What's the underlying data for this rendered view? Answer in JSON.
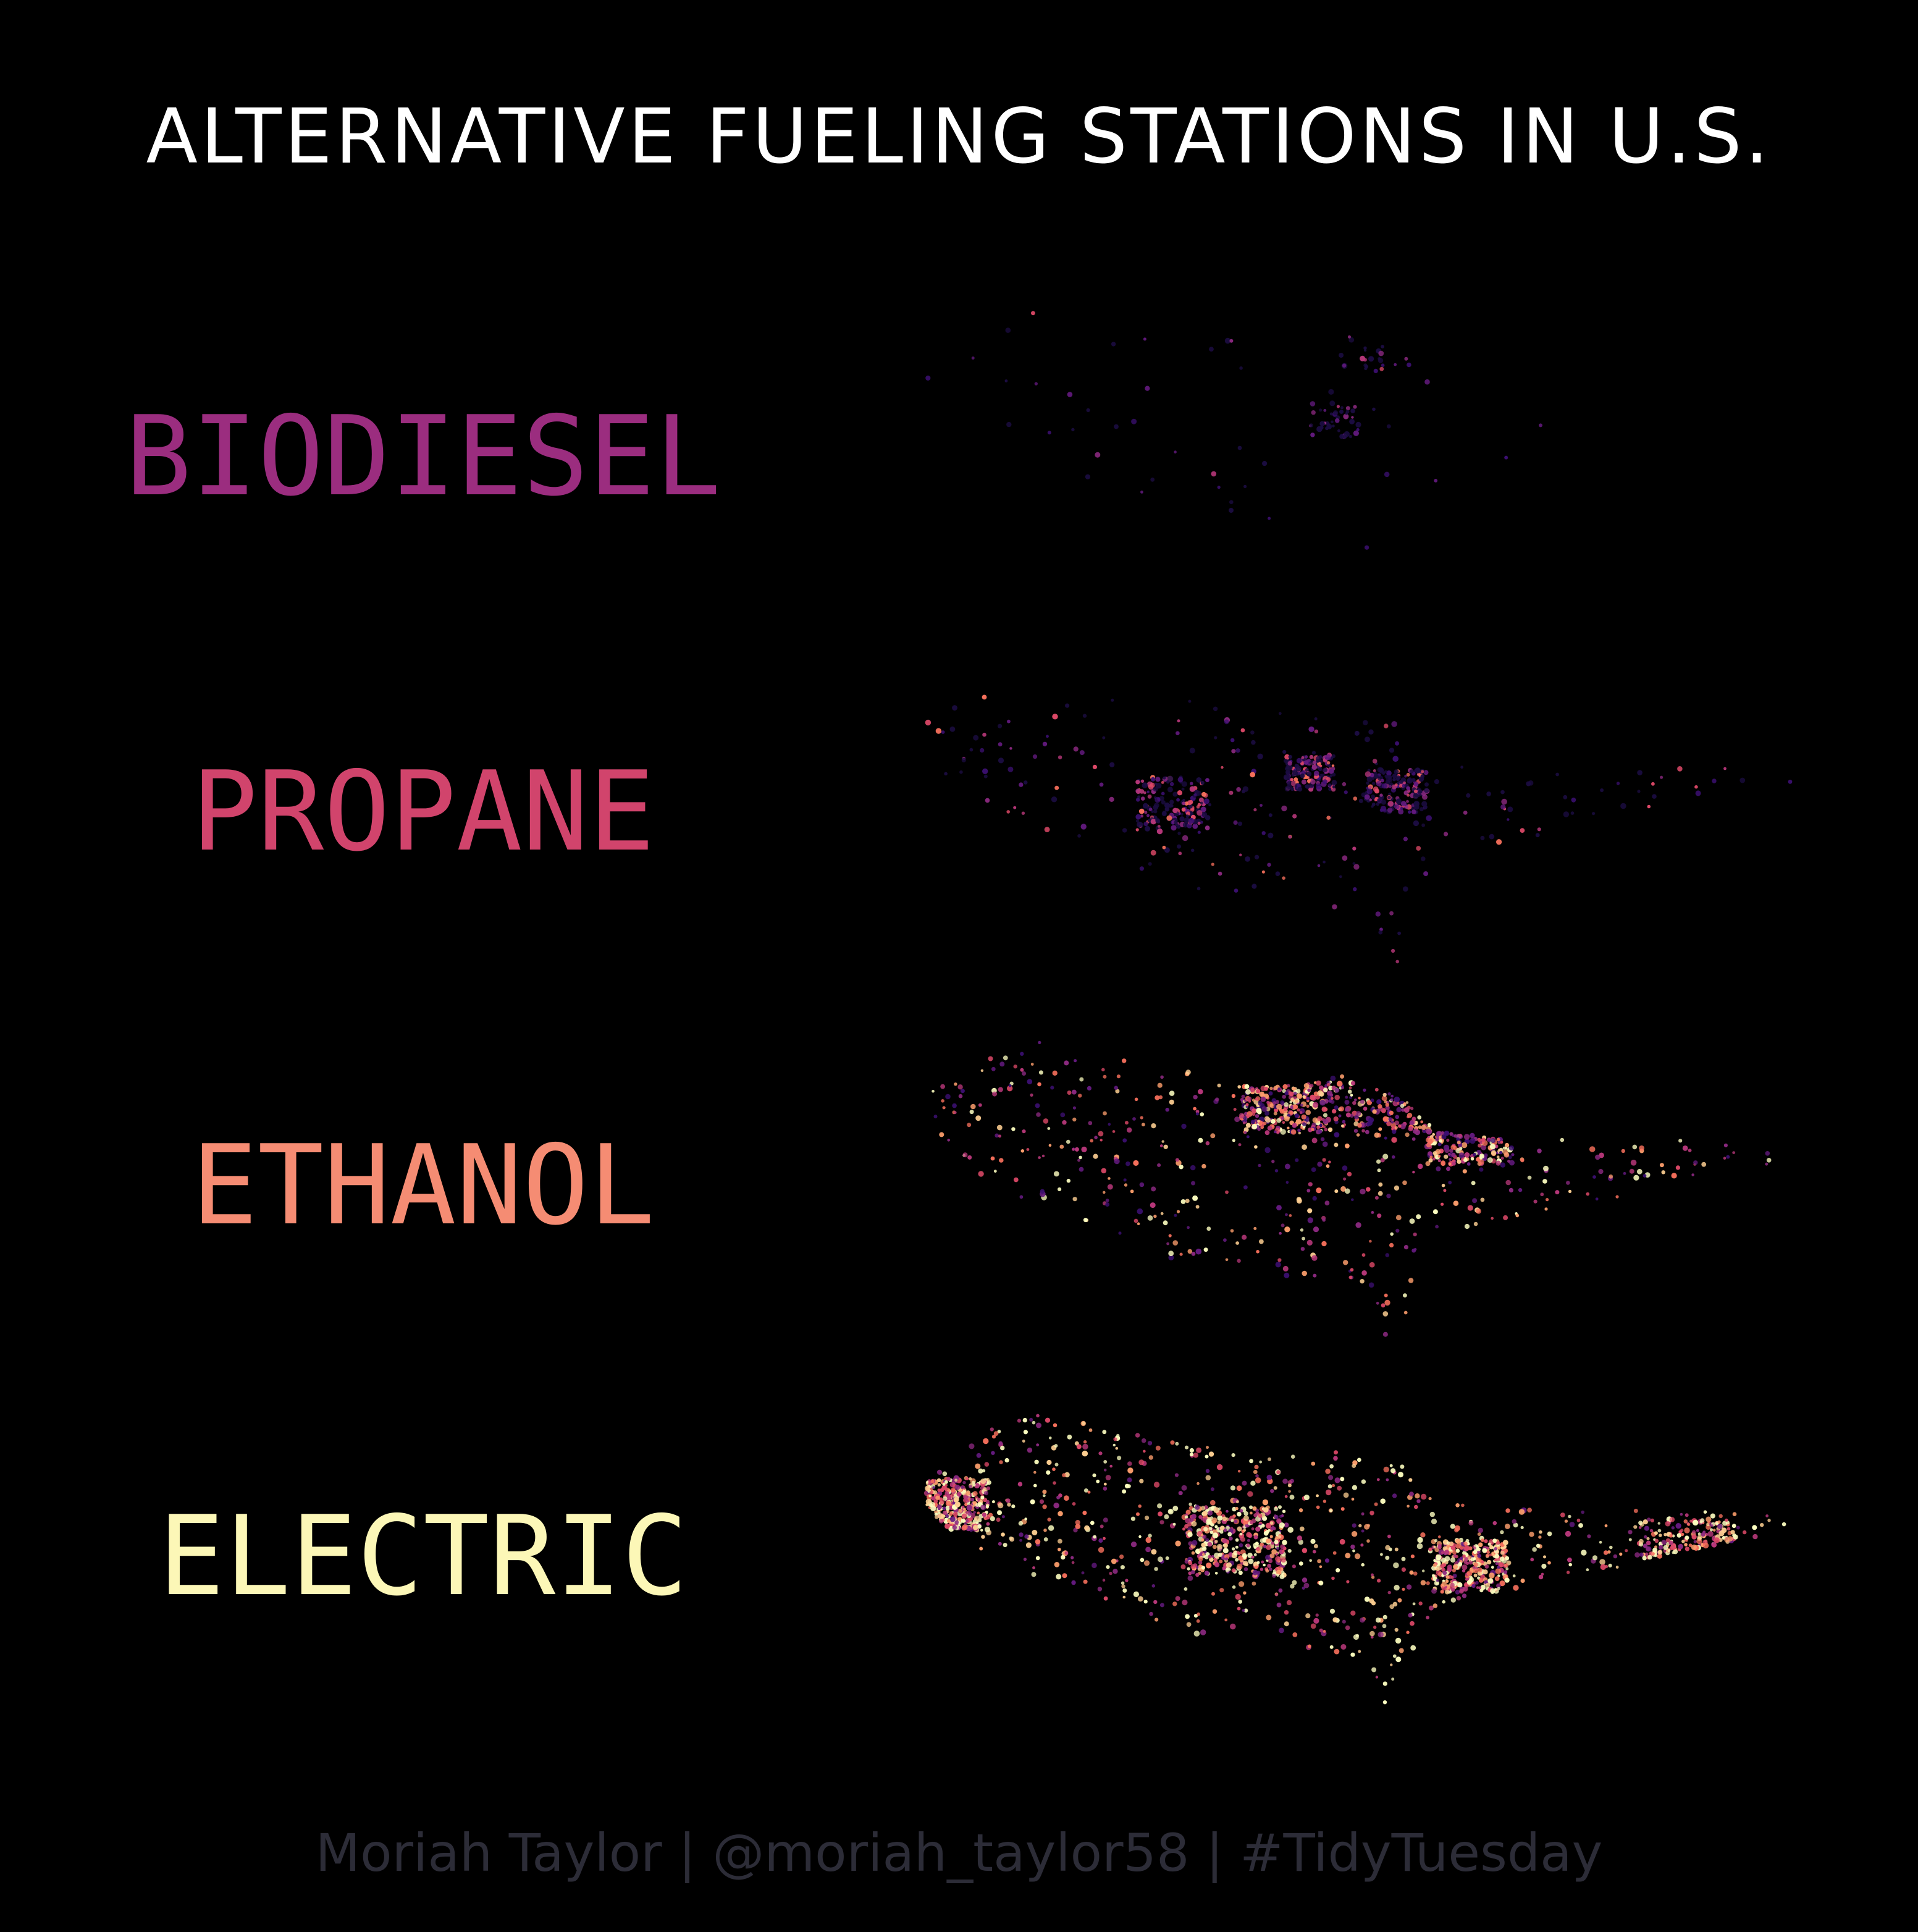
{
  "title": "ALTERNATIVE FUELING STATIONS IN U.S.",
  "caption": "Moriah Taylor | @moriah_taylor58 | #TidyTuesday",
  "palette": [
    "#1b0c41",
    "#3b0f70",
    "#641a80",
    "#8c2981",
    "#b73779",
    "#de4968",
    "#f7705c",
    "#fe9f6d",
    "#fecf92",
    "#fcfdbf"
  ],
  "chart_data": {
    "type": "scatter",
    "map_region": "U.S.",
    "color_scale": "magma",
    "panels": [
      {
        "label": "BIODIESEL",
        "label_color": "#9b2d7f",
        "density": "sparse",
        "points": 110
      },
      {
        "label": "PROPANE",
        "label_color": "#d1446c",
        "density": "moderate",
        "points": 700
      },
      {
        "label": "ETHANOL",
        "label_color": "#f58c73",
        "density": "dense",
        "points": 1000
      },
      {
        "label": "ELECTRIC",
        "label_color": "#fcf7b7",
        "density": "very dense",
        "points": 1800
      }
    ]
  }
}
